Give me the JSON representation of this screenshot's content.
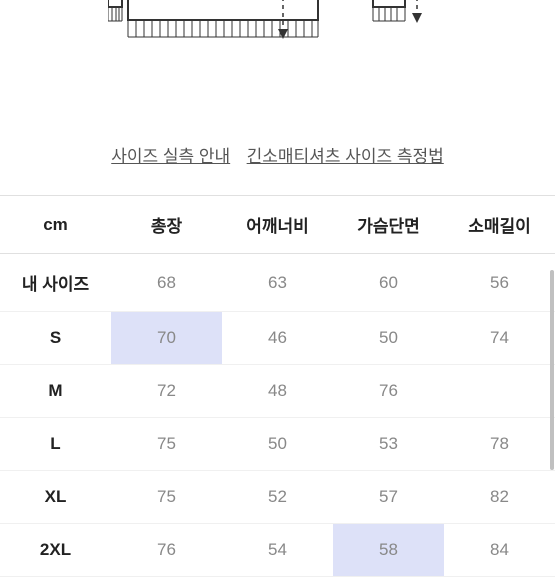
{
  "links": {
    "size_guide": "사이즈 실측 안내",
    "measure_guide": "긴소매티셔츠 사이즈 측정법"
  },
  "table": {
    "columns": [
      "cm",
      "총장",
      "어깨너비",
      "가슴단면",
      "소매길이"
    ],
    "rows": [
      {
        "label": "내 사이즈",
        "values": [
          "68",
          "63",
          "60",
          "56"
        ],
        "highlights": [
          false,
          false,
          false,
          false
        ]
      },
      {
        "label": "S",
        "values": [
          "70",
          "46",
          "50",
          "74"
        ],
        "highlights": [
          true,
          false,
          false,
          false
        ]
      },
      {
        "label": "M",
        "values": [
          "72",
          "48",
          "76",
          ""
        ],
        "highlights": [
          false,
          false,
          false,
          false
        ]
      },
      {
        "label": "L",
        "values": [
          "75",
          "50",
          "53",
          "78"
        ],
        "highlights": [
          false,
          false,
          false,
          false
        ]
      },
      {
        "label": "XL",
        "values": [
          "75",
          "52",
          "57",
          "82"
        ],
        "highlights": [
          false,
          false,
          false,
          false
        ]
      },
      {
        "label": "2XL",
        "values": [
          "76",
          "54",
          "58",
          "84"
        ],
        "highlights": [
          false,
          false,
          true,
          false
        ]
      }
    ]
  },
  "colors": {
    "highlight_bg": "#dde1f8",
    "border": "#e0e0e0",
    "row_border": "#f0f0f0",
    "text_header": "#222222",
    "text_value": "#888888",
    "link": "#555555"
  }
}
